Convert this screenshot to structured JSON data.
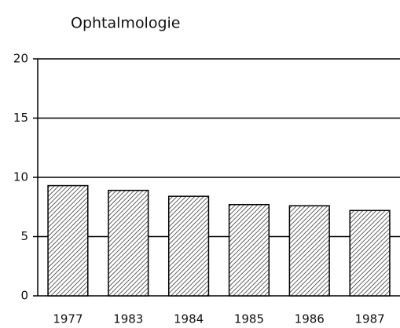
{
  "chart_data": {
    "type": "bar",
    "title": "Ophtalmologie",
    "categories": [
      "1977",
      "1983",
      "1984",
      "1985",
      "1986",
      "1987"
    ],
    "values": [
      9.3,
      8.9,
      8.4,
      7.7,
      7.6,
      7.2
    ],
    "color": "#000000",
    "ylim": [
      0,
      20
    ],
    "yticks": [
      0,
      5,
      10,
      15,
      20
    ],
    "grid": true
  }
}
